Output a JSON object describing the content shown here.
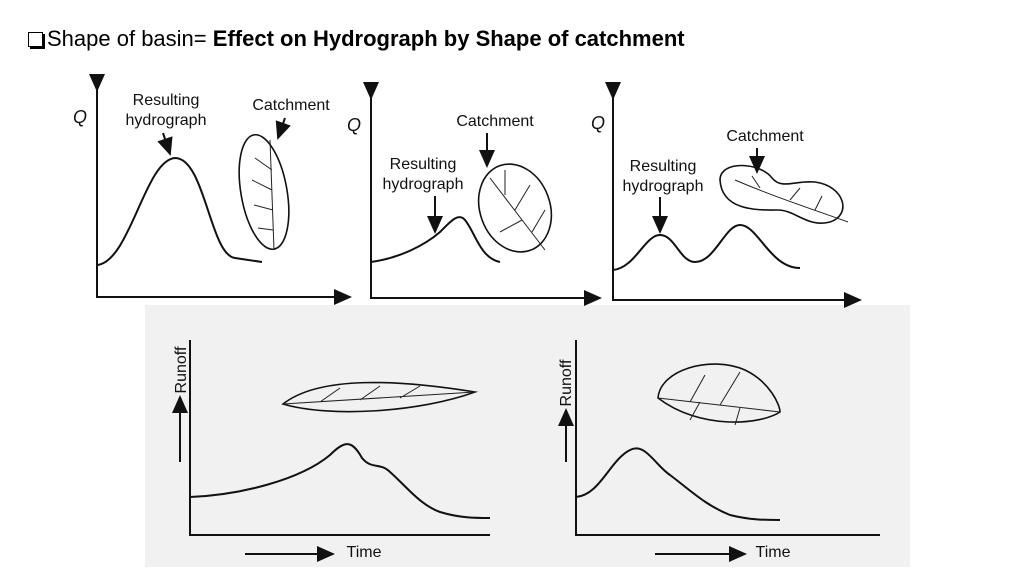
{
  "header": {
    "prefix": "Shape of basin=",
    "title": "Effect on Hydrograph by Shape of catchment"
  },
  "top_panels": [
    {
      "y_axis": "Q",
      "hydrograph_label": [
        "Resulting",
        "hydrograph"
      ],
      "catchment_label": "Catchment"
    },
    {
      "y_axis": "Q",
      "hydrograph_label": [
        "Resulting",
        "hydrograph"
      ],
      "catchment_label": "Catchment"
    },
    {
      "y_axis": "Q",
      "hydrograph_label": [
        "Resulting",
        "hydrograph"
      ],
      "catchment_label": "Catchment"
    }
  ],
  "bottom_panels": [
    {
      "y_axis": "Runoff",
      "x_axis": "Time"
    },
    {
      "y_axis": "Runoff",
      "x_axis": "Time"
    }
  ]
}
